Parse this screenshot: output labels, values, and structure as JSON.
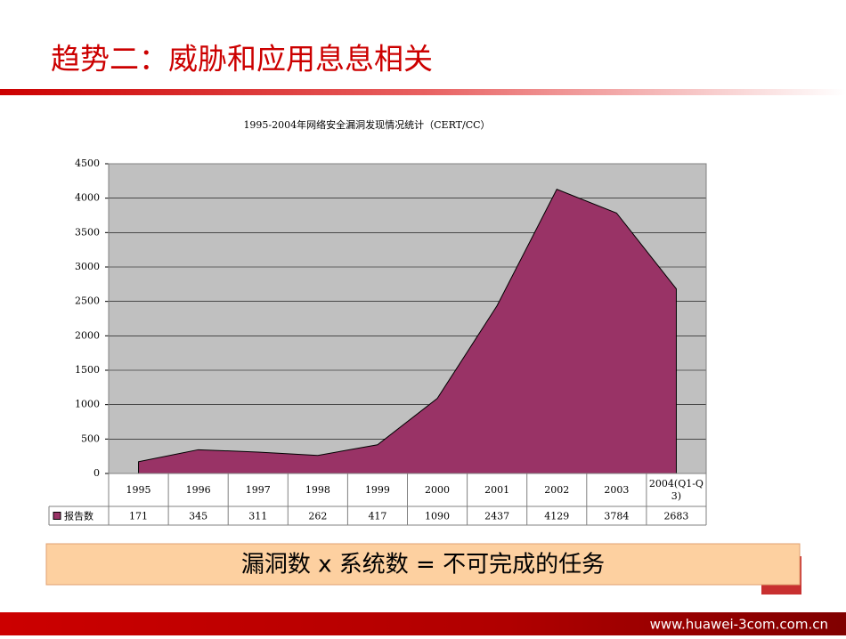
{
  "header": {
    "title": "趋势二：威胁和应用息息相关"
  },
  "chart_data": {
    "type": "area",
    "title": "1995-2004年网络安全漏洞发现情况统计（CERT/CC）",
    "categories": [
      "1995",
      "1996",
      "1997",
      "1998",
      "1999",
      "2000",
      "2001",
      "2002",
      "2003",
      "2004(Q1-Q3)"
    ],
    "series": [
      {
        "name": "报告数",
        "color": "#993366",
        "values": [
          171,
          345,
          311,
          262,
          417,
          1090,
          2437,
          4129,
          3784,
          2683
        ]
      }
    ],
    "ylim": [
      0,
      4500
    ],
    "yticks": [
      0,
      500,
      1000,
      1500,
      2000,
      2500,
      3000,
      3500,
      4000,
      4500
    ],
    "grid": true
  },
  "banner": {
    "text": "漏洞数 x 系统数 = 不可完成的任务"
  },
  "footer": {
    "url": "www.huawei-3com.com.cn"
  }
}
